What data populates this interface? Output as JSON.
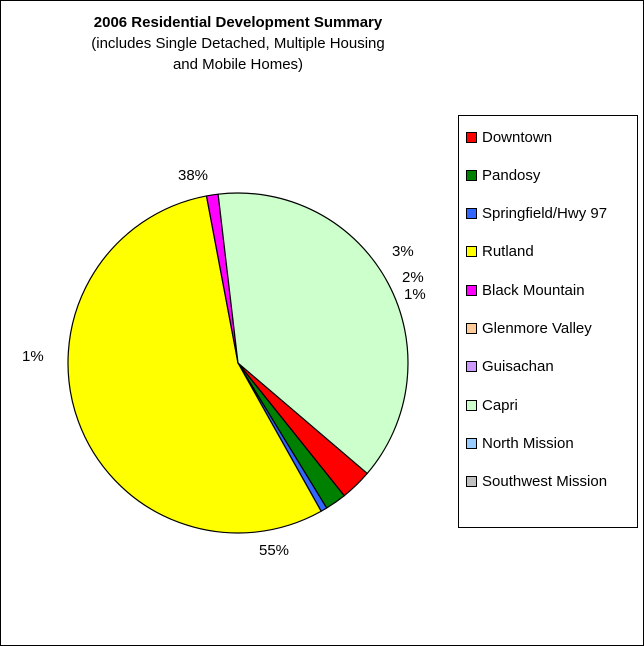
{
  "chart_data": {
    "type": "pie",
    "title": "2006 Residential Development Summary",
    "subtitle": [
      "(includes Single Detached, Multiple Housing",
      "and Mobile Homes)"
    ],
    "slices": [
      {
        "label": "Downtown",
        "value": 3,
        "color": "#ff0000",
        "pct_label": "3%"
      },
      {
        "label": "Pandosy",
        "value": 2,
        "color": "#008000",
        "pct_label": "2%"
      },
      {
        "label": "Springfield/Hwy 97",
        "value": 0.6,
        "color": "#3366ff",
        "pct_label": "1%"
      },
      {
        "label": "Rutland",
        "value": 55,
        "color": "#ffff00",
        "pct_label": "55%"
      },
      {
        "label": "Black Mountain",
        "value": 1.1,
        "color": "#ff00ff",
        "pct_label": "1%"
      },
      {
        "label": "Glenmore Valley",
        "value": 0,
        "color": "#ffcc99",
        "pct_label": ""
      },
      {
        "label": "Guisachan",
        "value": 0,
        "color": "#cc99ff",
        "pct_label": ""
      },
      {
        "label": "Capri",
        "value": 38,
        "color": "#ccffcc",
        "pct_label": "38%"
      },
      {
        "label": "North Mission",
        "value": 0,
        "color": "#99ccff",
        "pct_label": ""
      },
      {
        "label": "Southwest Mission",
        "value": 0,
        "color": "#c0c0c0",
        "pct_label": ""
      }
    ],
    "legend_position": "right"
  }
}
